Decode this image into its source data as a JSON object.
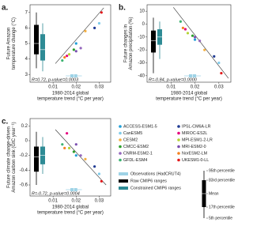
{
  "chart_data": [
    {
      "type": "scatter",
      "panel_label": "a.",
      "ylabel": [
        "Future Amazon",
        "temperature change (°C)"
      ],
      "xlabel": [
        "1980-2014 global",
        "temperature trend (°C per year)"
      ],
      "annotation": "R=0.72, p-value=0.0003",
      "xlim": [
        0,
        0.035
      ],
      "xticks": [
        0.01,
        0.02,
        0.03
      ],
      "ylim": [
        2.5,
        7.5
      ],
      "yticks": [
        3,
        4,
        5,
        6,
        7
      ],
      "trend_line": {
        "x": [
          0.011,
          0.032
        ],
        "y": [
          3.7,
          7.3
        ]
      },
      "ranges": [
        {
          "color": "#000000",
          "p5": 3.4,
          "p17": 4.3,
          "mean": 5.0,
          "p83": 6.2,
          "p95": 7.0
        },
        {
          "color": "#2e8b95",
          "p5": 3.2,
          "p17": 3.9,
          "mean": 4.6,
          "p83": 5.6,
          "p95": 6.3
        }
      ],
      "observation": {
        "color": "#9fd3e6",
        "p5": 0.0155,
        "p17": 0.0175,
        "mean": 0.019,
        "p83": 0.0205,
        "p95": 0.0225
      },
      "series": [
        {
          "name": "ACCESS-ESM1-5",
          "color": "#1f9fd8",
          "x": [
            0.02
          ],
          "values": [
            5.0
          ]
        },
        {
          "name": "CanESM5",
          "color": "#7fcbea",
          "x": [
            0.03
          ],
          "values": [
            6.3
          ]
        },
        {
          "name": "CESM2",
          "color": "#f5b041",
          "x": [
            0.024
          ],
          "values": [
            5.8
          ]
        },
        {
          "name": "CMCC-ESM2",
          "color": "#2ca02c",
          "x": [
            0.019
          ],
          "values": [
            4.6
          ]
        },
        {
          "name": "CNRM-ESM2-1",
          "color": "#9467bd",
          "x": [
            0.022
          ],
          "values": [
            4.7
          ]
        },
        {
          "name": "GFDL-ESM4",
          "color": "#3cb371",
          "x": [
            0.014
          ],
          "values": [
            3.9
          ]
        },
        {
          "name": "IPSL-CM6A-LR",
          "color": "#1f3a93",
          "x": [
            0.028
          ],
          "values": [
            6.0
          ]
        },
        {
          "name": "MIROC-ES2L",
          "color": "#e6007e",
          "x": [
            0.016
          ],
          "values": [
            4.2
          ]
        },
        {
          "name": "MPI-ESM1-2-LR",
          "color": "#b5d334",
          "x": [
            0.017
          ],
          "values": [
            4.3
          ]
        },
        {
          "name": "MRI-ESM2-0",
          "color": "#7b4fb0",
          "x": [
            0.02
          ],
          "values": [
            4.5
          ]
        },
        {
          "name": "NorESM2-LM",
          "color": "#f58220",
          "x": [
            0.015
          ],
          "values": [
            4.1
          ]
        },
        {
          "name": "UKESM1-0-LL",
          "color": "#e31a1c",
          "x": [
            0.031
          ],
          "values": [
            7.0
          ]
        }
      ]
    },
    {
      "type": "scatter",
      "panel_label": "b.",
      "ylabel": [
        "Future changes in",
        "Amazon precipitation (%)"
      ],
      "xlabel": [
        "1980-2014 global",
        "temperature trend (°C per year)"
      ],
      "annotation": "R=-0.84, p-value=0.0000",
      "xlim": [
        0,
        0.035
      ],
      "xticks": [
        0.01,
        0.02,
        0.03
      ],
      "ylim": [
        -45,
        15
      ],
      "yticks": [
        10,
        0,
        -10,
        -20,
        -30,
        -40
      ],
      "trend_line": {
        "x": [
          0.011,
          0.034
        ],
        "y": [
          13,
          -42
        ]
      },
      "ranges": [
        {
          "color": "#000000",
          "p5": -38,
          "p17": -22,
          "mean": -13,
          "p83": -5,
          "p95": 5
        },
        {
          "color": "#2e8b95",
          "p5": -27,
          "p17": -16,
          "mean": -10,
          "p83": -4,
          "p95": 2
        }
      ],
      "observation": {
        "color": "#9fd3e6",
        "p5": 0.0155,
        "p17": 0.0175,
        "mean": 0.019,
        "p83": 0.0205,
        "p95": 0.0225
      },
      "series": [
        {
          "color": "#1f9fd8",
          "x": [
            0.02
          ],
          "values": [
            -12
          ]
        },
        {
          "color": "#7fcbea",
          "x": [
            0.03
          ],
          "values": [
            -30
          ]
        },
        {
          "color": "#f5b041",
          "x": [
            0.024
          ],
          "values": [
            -20
          ]
        },
        {
          "color": "#2ca02c",
          "x": [
            0.019
          ],
          "values": [
            -9
          ]
        },
        {
          "color": "#9467bd",
          "x": [
            0.022
          ],
          "values": [
            -13
          ]
        },
        {
          "color": "#3cb371",
          "x": [
            0.014
          ],
          "values": [
            2
          ]
        },
        {
          "color": "#1f3a93",
          "x": [
            0.028
          ],
          "values": [
            -25
          ]
        },
        {
          "color": "#e6007e",
          "x": [
            0.016
          ],
          "values": [
            -4
          ]
        },
        {
          "color": "#b5d334",
          "x": [
            0.017
          ],
          "values": [
            -7
          ]
        },
        {
          "color": "#7b4fb0",
          "x": [
            0.02
          ],
          "values": [
            -10
          ]
        },
        {
          "color": "#f58220",
          "x": [
            0.015
          ],
          "values": [
            -3
          ]
        },
        {
          "color": "#e31a1c",
          "x": [
            0.031
          ],
          "values": [
            -38
          ]
        }
      ]
    },
    {
      "type": "scatter",
      "panel_label": "c.",
      "ylabel": [
        "Future climate change-driven",
        "Amazon carbon sink (GtC year⁻¹)"
      ],
      "xlabel": [
        "1980-2014 global",
        "temperature trend (°C per year)"
      ],
      "annotation": "R=-0.72, p-value=0.0004",
      "xlim": [
        0,
        0.035
      ],
      "xticks": [
        0.01,
        0.02,
        0.03
      ],
      "ylim": [
        -0.75,
        0.3
      ],
      "yticks": [
        0.2,
        0,
        -0.2,
        -0.4,
        -0.6
      ],
      "trend_line": {
        "x": [
          0.011,
          0.033
        ],
        "y": [
          0.15,
          -0.6
        ]
      },
      "ranges": [
        {
          "color": "#000000",
          "p5": -0.6,
          "p17": -0.42,
          "mean": -0.22,
          "p83": -0.08,
          "p95": 0.12
        },
        {
          "color": "#2e8b95",
          "p5": -0.45,
          "p17": -0.32,
          "mean": -0.2,
          "p83": -0.08,
          "p95": 0.05
        }
      ],
      "observation": {
        "color": "#9fd3e6",
        "p5": 0.0155,
        "p17": 0.0175,
        "mean": 0.019,
        "p83": 0.0205,
        "p95": 0.0225
      },
      "series": [
        {
          "color": "#1f9fd8",
          "x": [
            0.02
          ],
          "values": [
            -0.2
          ]
        },
        {
          "color": "#7fcbea",
          "x": [
            0.03
          ],
          "values": [
            -0.45
          ]
        },
        {
          "color": "#f5b041",
          "x": [
            0.024
          ],
          "values": [
            -0.25
          ]
        },
        {
          "color": "#2ca02c",
          "x": [
            0.019
          ],
          "values": [
            -0.15
          ]
        },
        {
          "color": "#9467bd",
          "x": [
            0.022
          ],
          "values": [
            -0.2
          ]
        },
        {
          "color": "#3cb371",
          "x": [
            0.014
          ],
          "values": [
            -0.05
          ]
        },
        {
          "color": "#1f3a93",
          "x": [
            0.028
          ],
          "values": [
            -0.35
          ]
        },
        {
          "color": "#e6007e",
          "x": [
            0.016
          ],
          "values": [
            0.1
          ]
        },
        {
          "color": "#b5d334",
          "x": [
            0.017
          ],
          "values": [
            -0.1
          ]
        },
        {
          "color": "#7b4fb0",
          "x": [
            0.02
          ],
          "values": [
            -0.05
          ]
        },
        {
          "color": "#f58220",
          "x": [
            0.015
          ],
          "values": [
            -0.1
          ]
        },
        {
          "color": "#e31a1c",
          "x": [
            0.031
          ],
          "values": [
            -0.55
          ]
        }
      ]
    }
  ],
  "range_legend": [
    {
      "label": "Observations (HadCRUT4)",
      "color": "#9fd3e6"
    },
    {
      "label": "Raw CMIP6 ranges",
      "color": "#000000"
    },
    {
      "label": "Constrained CMIP6 ranges",
      "color": "#2e8b95"
    }
  ],
  "percentile_legend": [
    "95th percentile",
    "83rd percentile",
    "Mean",
    "17th percentile",
    "5th percentile"
  ]
}
